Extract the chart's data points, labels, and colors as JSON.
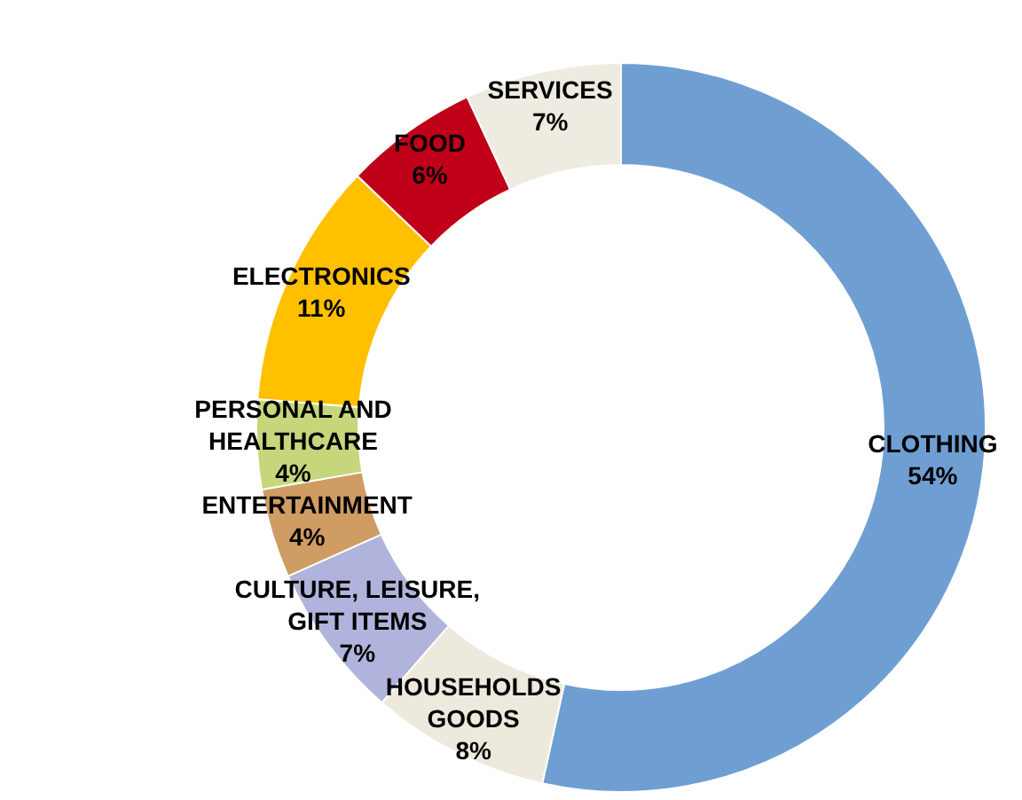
{
  "chart_data": {
    "type": "donut",
    "categories": [
      "CLOTHING",
      "HOUSEHOLDS GOODS",
      "CULTURE, LEISURE, GIFT ITEMS",
      "ENTERTAINMENT",
      "PERSONAL AND HEALTHCARE",
      "ELECTRONICS",
      "FOOD",
      "SERVICES"
    ],
    "values": [
      54,
      8,
      7,
      4,
      4,
      11,
      6,
      7
    ],
    "colors": [
      "#6f9fd2",
      "#ede9dc",
      "#b0b4dc",
      "#cf9c63",
      "#c6d67a",
      "#ffc000",
      "#c00018",
      "#eeebe0"
    ],
    "value_labels": [
      "54%",
      "8%",
      "7%",
      "4%",
      "4%",
      "11%",
      "6%",
      "7%"
    ],
    "legend": false
  }
}
